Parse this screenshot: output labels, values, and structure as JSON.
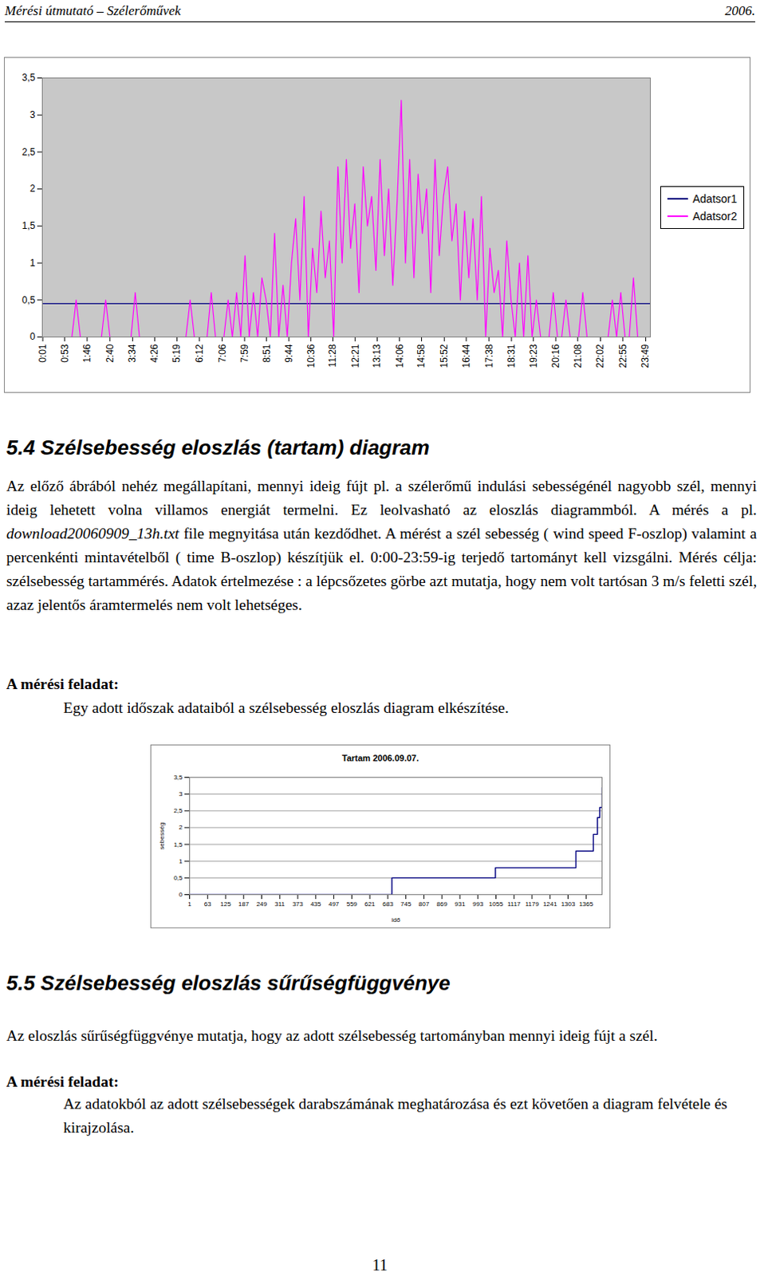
{
  "header": {
    "left": "Mérési útmutató – Szélerőművek",
    "right": "2006."
  },
  "chart_data": [
    {
      "type": "line",
      "series": [
        {
          "name": "Adatsor1",
          "color": "#000080",
          "x": [
            0,
            1440
          ],
          "values": [
            0.45,
            0.45
          ]
        },
        {
          "name": "Adatsor2",
          "color": "#ff00ff",
          "x": [
            0,
            10,
            20,
            30,
            40,
            50,
            60,
            70,
            80,
            90,
            100,
            110,
            120,
            130,
            140,
            150,
            160,
            170,
            180,
            190,
            200,
            210,
            220,
            230,
            240,
            250,
            260,
            270,
            280,
            290,
            300,
            310,
            320,
            330,
            340,
            350,
            360,
            370,
            380,
            390,
            400,
            410,
            420,
            430,
            440,
            450,
            460,
            470,
            480,
            490,
            500,
            510,
            520,
            530,
            540,
            550,
            560,
            570,
            580,
            590,
            600,
            610,
            620,
            630,
            640,
            650,
            660,
            670,
            680,
            690,
            700,
            710,
            720,
            730,
            740,
            750,
            760,
            770,
            780,
            790,
            800,
            810,
            820,
            830,
            840,
            850,
            860,
            870,
            880,
            890,
            900,
            910,
            920,
            930,
            940,
            950,
            960,
            970,
            980,
            990,
            1000,
            1010,
            1020,
            1030,
            1040,
            1050,
            1060,
            1070,
            1080,
            1090,
            1100,
            1110,
            1120,
            1130,
            1140,
            1150,
            1160,
            1170,
            1180,
            1190,
            1200,
            1210,
            1220,
            1230,
            1240,
            1250,
            1260,
            1270,
            1280,
            1290,
            1300,
            1310,
            1320,
            1330,
            1340,
            1350,
            1360,
            1370,
            1380,
            1390,
            1400,
            1410,
            1420,
            1430
          ],
          "values": [
            0,
            0,
            0,
            0,
            0,
            0,
            0,
            0,
            0.5,
            0,
            0,
            0,
            0,
            0,
            0,
            0.5,
            0,
            0,
            0,
            0,
            0,
            0,
            0.6,
            0,
            0,
            0,
            0,
            0,
            0,
            0,
            0,
            0,
            0,
            0,
            0,
            0.5,
            0,
            0,
            0,
            0,
            0.6,
            0,
            0,
            0,
            0.5,
            0,
            0.6,
            0,
            1.1,
            0,
            0.6,
            0,
            0.8,
            0.5,
            0,
            1.4,
            0,
            0.7,
            0,
            1.0,
            1.6,
            0.5,
            1.9,
            0,
            1.2,
            0.6,
            1.7,
            0.8,
            1.3,
            0,
            2.3,
            1.0,
            2.4,
            1.2,
            1.8,
            0.6,
            2.3,
            1.5,
            1.9,
            0.9,
            2.4,
            1.1,
            2.0,
            0.7,
            1.8,
            3.2,
            1.0,
            2.4,
            0.8,
            2.2,
            1.4,
            2.0,
            0.6,
            2.4,
            1.1,
            1.9,
            2.3,
            1.3,
            1.8,
            0.5,
            1.7,
            0.8,
            1.6,
            0.5,
            1.9,
            0,
            1.2,
            0.6,
            0.9,
            0,
            1.3,
            0.5,
            0,
            1.0,
            0,
            1.1,
            0,
            0.5,
            0,
            0,
            0,
            0.6,
            0,
            0,
            0.5,
            0,
            0,
            0,
            0.6,
            0,
            0,
            0,
            0,
            0,
            0,
            0.5,
            0,
            0.6,
            0,
            0,
            0.8,
            0,
            0,
            0
          ]
        }
      ],
      "xlim": [
        0,
        1440
      ],
      "xticks": [
        {
          "value": 1,
          "label": "0:01"
        },
        {
          "value": 53,
          "label": "0:53"
        },
        {
          "value": 106,
          "label": "1:46"
        },
        {
          "value": 160,
          "label": "2:40"
        },
        {
          "value": 214,
          "label": "3:34"
        },
        {
          "value": 266,
          "label": "4:26"
        },
        {
          "value": 319,
          "label": "5:19"
        },
        {
          "value": 372,
          "label": "6:12"
        },
        {
          "value": 426,
          "label": "7:06"
        },
        {
          "value": 479,
          "label": "7:59"
        },
        {
          "value": 531,
          "label": "8:51"
        },
        {
          "value": 584,
          "label": "9:44"
        },
        {
          "value": 636,
          "label": "10:36"
        },
        {
          "value": 688,
          "label": "11:28"
        },
        {
          "value": 741,
          "label": "12:21"
        },
        {
          "value": 793,
          "label": "13:13"
        },
        {
          "value": 846,
          "label": "14:06"
        },
        {
          "value": 898,
          "label": "14:58"
        },
        {
          "value": 952,
          "label": "15:52"
        },
        {
          "value": 1004,
          "label": "16:44"
        },
        {
          "value": 1058,
          "label": "17:38"
        },
        {
          "value": 1111,
          "label": "18:31"
        },
        {
          "value": 1163,
          "label": "19:23"
        },
        {
          "value": 1216,
          "label": "20:16"
        },
        {
          "value": 1268,
          "label": "21:08"
        },
        {
          "value": 1322,
          "label": "22:02"
        },
        {
          "value": 1375,
          "label": "22:55"
        },
        {
          "value": 1429,
          "label": "23:49"
        }
      ],
      "ylim": [
        0,
        3.5
      ],
      "yticks": [
        0,
        {
          "value": 0.5,
          "label": "0,5"
        },
        1,
        {
          "value": 1.5,
          "label": "1,5"
        },
        2,
        {
          "value": 2.5,
          "label": "2,5"
        },
        3,
        {
          "value": 3.5,
          "label": "3,5"
        }
      ],
      "grid": false,
      "legend": "right"
    },
    {
      "type": "line",
      "line_style": "step",
      "title": "Tartam 2006.09.07.",
      "x_label": "idő",
      "y_label": "sebesség",
      "color": "#000080",
      "x": [
        1,
        697,
        1053,
        1330,
        1390,
        1404,
        1412,
        1420
      ],
      "values": [
        0,
        0.5,
        0.8,
        1.3,
        1.8,
        2.3,
        2.6,
        3.2
      ],
      "xlim": [
        1,
        1420
      ],
      "xticks": [
        1,
        63,
        125,
        187,
        249,
        311,
        373,
        435,
        497,
        559,
        621,
        683,
        745,
        807,
        869,
        931,
        993,
        1055,
        1117,
        1179,
        1241,
        1303,
        1365
      ],
      "ylim": [
        0,
        3.5
      ],
      "yticks": [
        0,
        {
          "value": 0.5,
          "label": "0,5"
        },
        1,
        {
          "value": 1.5,
          "label": "1,5"
        },
        2,
        {
          "value": 2.5,
          "label": "2,5"
        },
        3,
        {
          "value": 3.5,
          "label": "3,5"
        }
      ],
      "grid": true
    }
  ],
  "sections": [
    {
      "heading": "5.4 Szélsebesség eloszlás (tartam) diagram",
      "paragraph": [
        {
          "text": "Az előző ábrából nehéz megállapítani, mennyi ideig fújt pl. a szélerőmű indulási sebességénél nagyobb szél, mennyi ideig lehetett volna villamos energiát termelni. Ez leolvasható az eloszlás diagrammból. A mérés a pl. ",
          "italic": false
        },
        {
          "text": "download20060909_13h.txt",
          "italic": true
        },
        {
          "text": " file megnyitása után kezdődhet. A mérést a szél sebesség ( wind speed  F-oszlop) valamint a percenkénti mintavételből ( time B-oszlop) készítjük el. 0:00-23:59-ig terjedő tartományt kell vizsgálni. Mérés célja: szélsebesség tartammérés. Adatok értelmezése : a lépcsőzetes görbe azt mutatja, hogy nem volt tartósan 3 m/s feletti szél, azaz jelentős áramtermelés nem volt lehetséges.",
          "italic": false
        }
      ],
      "task_label": "A mérési feladat:",
      "task": "Egy adott időszak adataiból a szélsebesség eloszlás diagram elkészítése."
    },
    {
      "heading": "5.5 Szélsebesség eloszlás sűrűségfüggvénye",
      "paragraph": [
        {
          "text": "Az eloszlás sűrűségfüggvénye mutatja, hogy az adott szélsebesség tartományban mennyi ideig fújt a szél.",
          "italic": false
        }
      ],
      "task_label": "A mérési feladat:",
      "task": "Az adatokból az adott szélsebességek darabszámának meghatározása és ezt követően a diagram felvétele és kirajzolása."
    }
  ],
  "page_number": "11"
}
